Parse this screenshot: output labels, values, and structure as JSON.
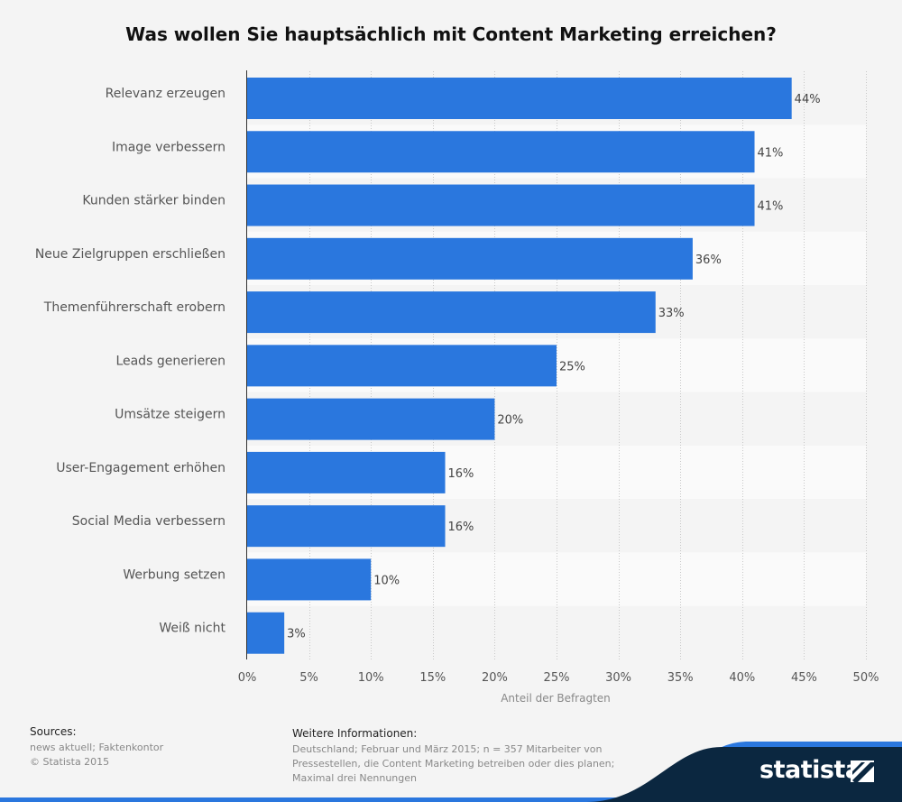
{
  "chart_data": {
    "type": "bar",
    "orientation": "horizontal",
    "title": "Was wollen Sie hauptsächlich mit Content Marketing erreichen?",
    "xlabel": "Anteil der Befragten",
    "categories": [
      "Relevanz erzeugen",
      "Image verbessern",
      "Kunden stärker binden",
      "Neue Zielgruppen erschließen",
      "Themenführerschaft erobern",
      "Leads generieren",
      "Umsätze steigern",
      "User-Engagement erhöhen",
      "Social Media verbessern",
      "Werbung setzen",
      "Weiß nicht"
    ],
    "values": [
      44,
      41,
      41,
      36,
      33,
      25,
      20,
      16,
      16,
      10,
      3
    ],
    "value_labels": [
      "44%",
      "41%",
      "41%",
      "36%",
      "33%",
      "25%",
      "20%",
      "16%",
      "16%",
      "10%",
      "3%"
    ],
    "xlim": [
      0,
      50
    ],
    "xticks": [
      0,
      5,
      10,
      15,
      20,
      25,
      30,
      35,
      40,
      45,
      50
    ],
    "xtick_labels": [
      "0%",
      "5%",
      "10%",
      "15%",
      "20%",
      "25%",
      "30%",
      "35%",
      "40%",
      "45%",
      "50%"
    ],
    "grid": true,
    "bar_color": "#2a77de"
  },
  "footer": {
    "sources_heading": "Sources:",
    "sources_lines": [
      "news aktuell; Faktenkontor",
      "© Statista 2015"
    ],
    "info_heading": "Weitere Informationen:",
    "info_text": "Deutschland; Februar und März 2015; n = 357 Mitarbeiter von Pressestellen, die Content Marketing betreiben oder dies planen; Maximal drei Nennungen"
  },
  "branding": {
    "logo_text": "statista",
    "band_color": "#0b2740",
    "accent_color": "#2a77de"
  }
}
